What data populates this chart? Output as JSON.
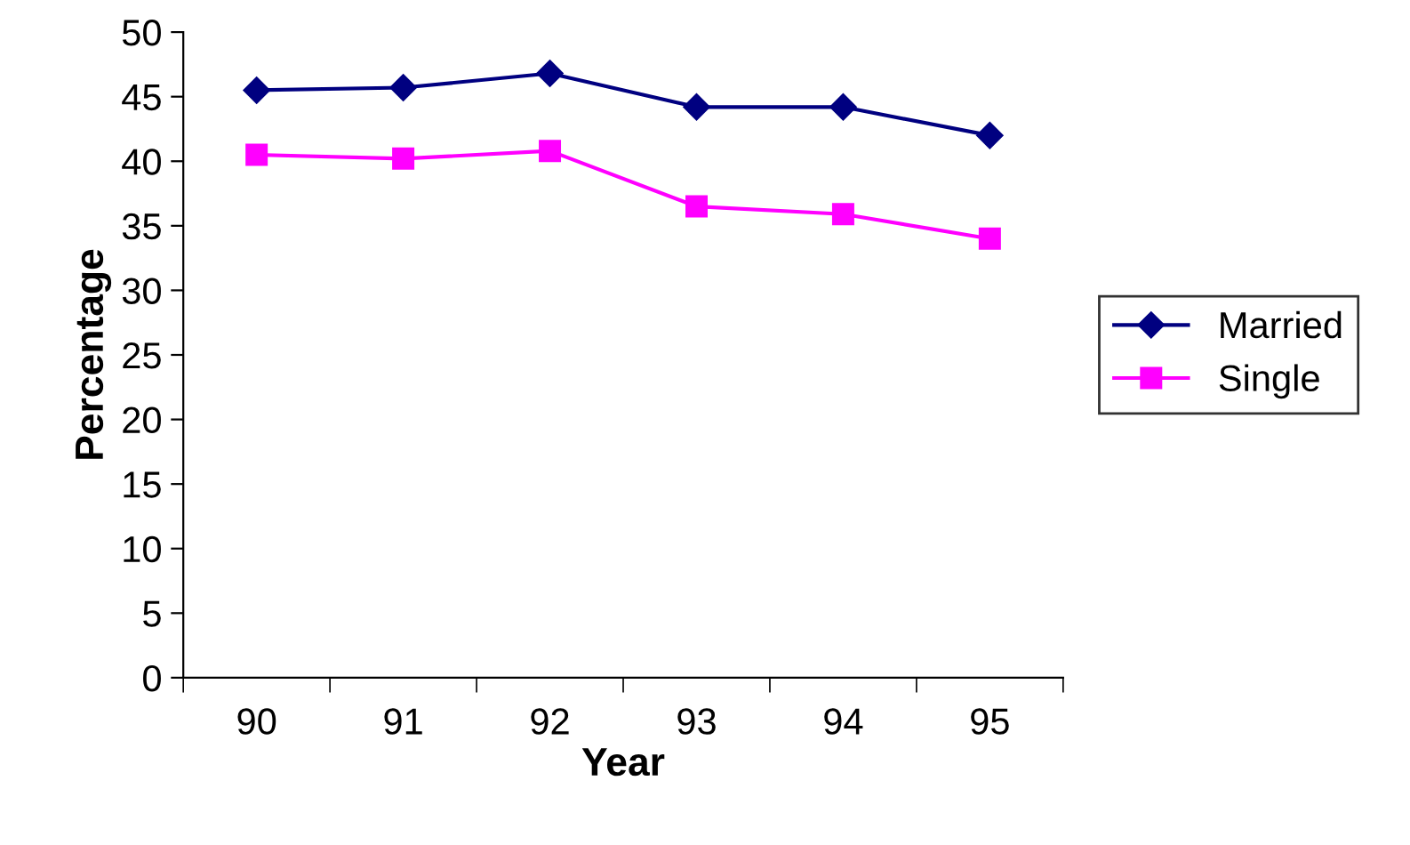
{
  "chart_data": {
    "type": "line",
    "xlabel": "Year",
    "ylabel": "Percentage",
    "categories": [
      "90",
      "91",
      "92",
      "93",
      "94",
      "95"
    ],
    "series": [
      {
        "name": "Married",
        "color": "#000080",
        "marker": "diamond",
        "values": [
          45.5,
          45.7,
          46.8,
          44.2,
          44.2,
          42.0
        ]
      },
      {
        "name": "Single",
        "color": "#ff00ff",
        "marker": "square",
        "values": [
          40.5,
          40.2,
          40.8,
          36.5,
          35.9,
          34.0
        ]
      }
    ],
    "ylim": [
      0,
      50
    ],
    "yticks": [
      0,
      5,
      10,
      15,
      20,
      25,
      30,
      35,
      40,
      45,
      50
    ],
    "grid": false,
    "legend": "right",
    "line_style": "solid"
  }
}
